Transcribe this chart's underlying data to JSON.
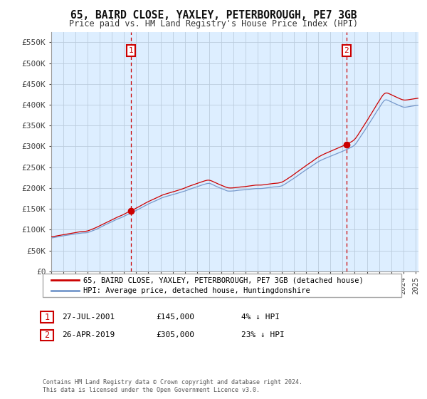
{
  "title": "65, BAIRD CLOSE, YAXLEY, PETERBOROUGH, PE7 3GB",
  "subtitle": "Price paid vs. HM Land Registry's House Price Index (HPI)",
  "background_color": "#ffffff",
  "plot_bg_color": "#ddeeff",
  "grid_color": "#bbccdd",
  "legend_house_label": "65, BAIRD CLOSE, YAXLEY, PETERBOROUGH, PE7 3GB (detached house)",
  "legend_hpi_label": "HPI: Average price, detached house, Huntingdonshire",
  "house_line_color": "#cc0000",
  "hpi_line_color": "#7799cc",
  "sale_marker_color": "#cc0000",
  "vline_color": "#cc0000",
  "annotation_box_color": "#cc0000",
  "sale_annotations": [
    {
      "label": "1",
      "date": "27-JUL-2001",
      "price": "£145,000",
      "pct": "4% ↓ HPI"
    },
    {
      "label": "2",
      "date": "26-APR-2019",
      "price": "£305,000",
      "pct": "23% ↓ HPI"
    }
  ],
  "footer": "Contains HM Land Registry data © Crown copyright and database right 2024.\nThis data is licensed under the Open Government Licence v3.0.",
  "yticks": [
    0,
    50000,
    100000,
    150000,
    200000,
    250000,
    300000,
    350000,
    400000,
    450000,
    500000,
    550000
  ],
  "ytick_labels": [
    "£0",
    "£50K",
    "£100K",
    "£150K",
    "£200K",
    "£250K",
    "£300K",
    "£350K",
    "£400K",
    "£450K",
    "£500K",
    "£550K"
  ]
}
